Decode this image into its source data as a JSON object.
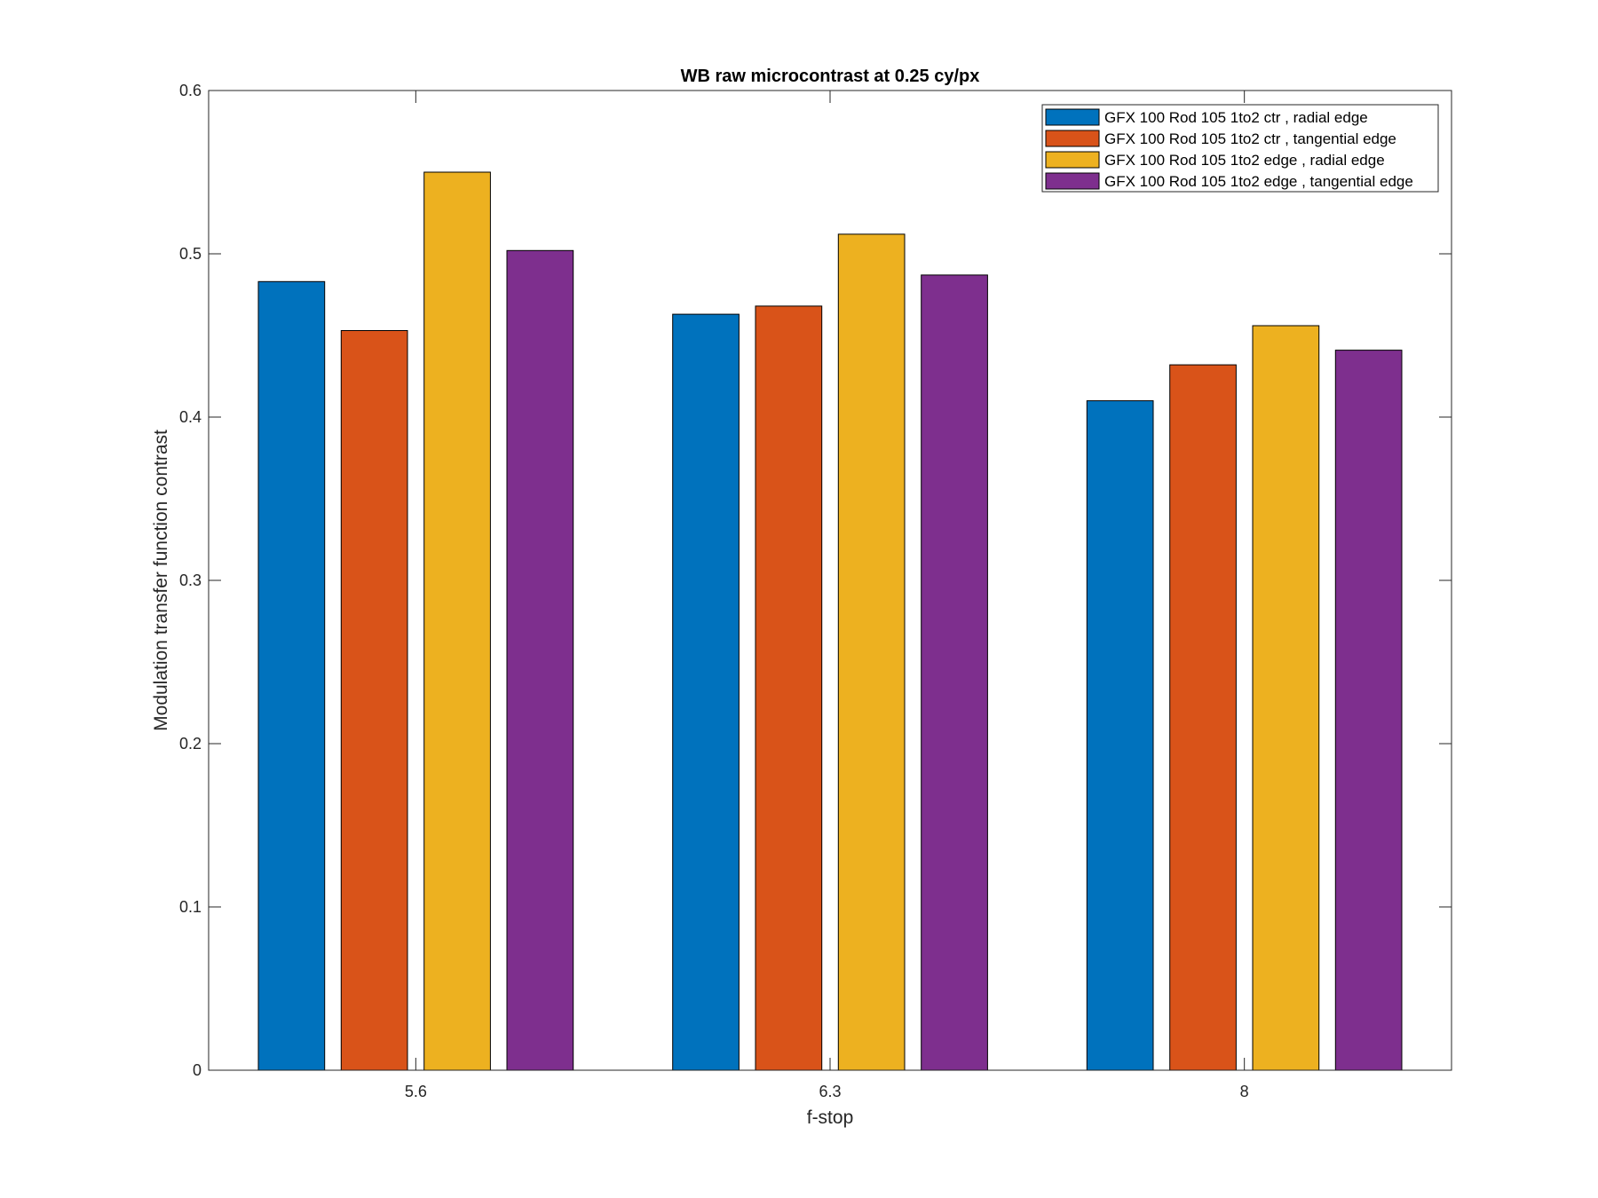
{
  "chart_data": {
    "type": "bar",
    "title": "WB raw  microcontrast at 0.25 cy/px",
    "xlabel": "f-stop",
    "ylabel": "Modulation transfer function contrast",
    "categories": [
      "5.6",
      "6.3",
      "8"
    ],
    "ylim": [
      0,
      0.6
    ],
    "yticks": [
      "0",
      "0.1",
      "0.2",
      "0.3",
      "0.4",
      "0.5",
      "0.6"
    ],
    "ytick_values": [
      0,
      0.1,
      0.2,
      0.3,
      0.4,
      0.5,
      0.6
    ],
    "grid": false,
    "legend_position": "top-right",
    "series": [
      {
        "name": "GFX 100 Rod 105 1to2 ctr , radial edge",
        "color": "#0072BD",
        "values": [
          0.483,
          0.463,
          0.41
        ]
      },
      {
        "name": "GFX 100 Rod 105 1to2 ctr , tangential edge",
        "color": "#D95319",
        "values": [
          0.453,
          0.468,
          0.432
        ]
      },
      {
        "name": "GFX 100 Rod 105 1to2 edge , radial edge",
        "color": "#EDB120",
        "values": [
          0.55,
          0.512,
          0.456
        ]
      },
      {
        "name": "GFX 100 Rod 105 1to2 edge , tangential edge",
        "color": "#7E2F8E",
        "values": [
          0.502,
          0.487,
          0.441
        ]
      }
    ]
  }
}
